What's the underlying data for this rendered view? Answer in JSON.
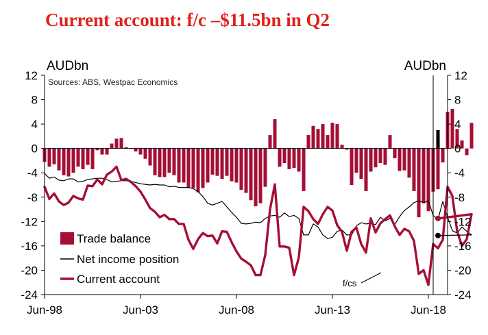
{
  "title": "Current account: f/c –$11.5bn in Q2",
  "chart_data": {
    "type": "bar",
    "title": "Current account: f/c –$11.5bn in Q2",
    "units_left": "AUDbn",
    "units_right": "AUDbn",
    "source": "Sources: ABS, Westpac Economics",
    "ylim": [
      -24,
      12
    ],
    "yticks": [
      12,
      8,
      4,
      0,
      -4,
      -8,
      -12,
      -16,
      -20,
      -24
    ],
    "xlim": [
      1998.0,
      2019.0
    ],
    "x_tick_positions": [
      1998.0,
      2003.0,
      2008.0,
      2013.0,
      2018.0
    ],
    "x_tick_labels": [
      "Jun-98",
      "Jun-03",
      "Jun-08",
      "Jun-13",
      "Jun-18"
    ],
    "forecast_line_x": 2018.25,
    "forecast_label": "f/cs",
    "colors": {
      "trade": "#a50f35",
      "current": "#a50f35",
      "income": "#000000",
      "forecast_bar": "#000000"
    },
    "legend": [
      "Trade balance",
      "Net income position",
      "Current account"
    ],
    "series": [
      {
        "name": "Trade balance",
        "kind": "bar",
        "x_start": 1998.0,
        "step": 0.25,
        "values": [
          -2.2,
          -3.0,
          -2.6,
          -3.6,
          -4.4,
          -4.6,
          -4.0,
          -3.0,
          -3.4,
          -2.7,
          -3.4,
          -0.3,
          -1.0,
          -1.0,
          0.8,
          1.6,
          1.7,
          0.2,
          -0.1,
          -0.5,
          -1.0,
          -1.7,
          -2.8,
          -4.4,
          -4.7,
          -4.7,
          -4.0,
          -4.4,
          -5.6,
          -5.6,
          -6.5,
          -6.5,
          -7.2,
          -6.5,
          -5.6,
          -4.3,
          -4.5,
          -5.0,
          -4.5,
          -5.4,
          -5.6,
          -6.8,
          -7.3,
          -8.5,
          -9.5,
          -9.0,
          -6.3,
          2.2,
          4.8,
          -3.0,
          -2.4,
          -3.4,
          -3.2,
          -3.8,
          -7.0,
          2.2,
          3.7,
          3.2,
          4.0,
          2.2,
          4.2,
          4.0,
          0.6,
          -0.2,
          -6.0,
          -4.0,
          -5.0,
          -7.0,
          -3.8,
          -3.1,
          -2.4,
          -2.7,
          2.2,
          -1.6,
          -3.7,
          -3.6,
          -4.8,
          -7.0,
          -11.3,
          -9.0,
          -10.3,
          -7.1,
          -6.7,
          -2.3,
          6.0,
          6.5,
          3.2,
          1.3,
          -1.1,
          4.2
        ],
        "forecast_values": [
          3.0
        ],
        "forecast_x_start": 2018.5
      },
      {
        "name": "Net income position",
        "kind": "line",
        "x_start": 1998.0,
        "step": 0.25,
        "values": [
          -4.1,
          -4.9,
          -4.7,
          -5.2,
          -5.3,
          -5.0,
          -5.0,
          -5.5,
          -5.4,
          -5.1,
          -5.0,
          -4.9,
          -4.9,
          -5.1,
          -5.5,
          -5.4,
          -5.3,
          -5.3,
          -5.4,
          -5.6,
          -5.8,
          -5.9,
          -6.0,
          -5.9,
          -6.0,
          -6.0,
          -6.3,
          -6.2,
          -6.4,
          -6.4,
          -6.4,
          -6.6,
          -7.1,
          -7.9,
          -9.0,
          -9.3,
          -9.0,
          -8.7,
          -9.6,
          -10.5,
          -11.3,
          -12.3,
          -12.4,
          -12.3,
          -12.1,
          -12.2,
          -11.5,
          -11.1,
          -11.0,
          -11.3,
          -10.6,
          -11.2,
          -11.0,
          -11.5,
          -14.2,
          -14.2,
          -12.4,
          -12.9,
          -14.2,
          -14.8,
          -14.6,
          -13.6,
          -13.4,
          -14.2,
          -14.2,
          -12.7,
          -12.2,
          -12.4,
          -12.3,
          -12.5,
          -11.3,
          -11.9,
          -11.5,
          -12.5,
          -11.2,
          -10.2,
          -9.6,
          -8.9,
          -8.6,
          -8.9,
          -8.6,
          -11.0,
          -11.7,
          -8.7,
          -11.3,
          -13.5,
          -13.9,
          -12.9,
          -13.6,
          -14.2
        ],
        "forecast_values": [
          -14.3
        ],
        "forecast_x_start": 2018.5
      },
      {
        "name": "Current account",
        "kind": "line",
        "x_start": 1998.0,
        "step": 0.25,
        "values": [
          -6.3,
          -8.3,
          -7.4,
          -8.7,
          -9.3,
          -8.9,
          -7.8,
          -8.2,
          -8.4,
          -6.1,
          -6.2,
          -5.1,
          -5.9,
          -4.3,
          -3.8,
          -3.0,
          -5.2,
          -5.0,
          -5.5,
          -6.2,
          -7.1,
          -8.4,
          -9.8,
          -10.4,
          -11.3,
          -10.9,
          -11.6,
          -11.6,
          -12.4,
          -12.4,
          -15.0,
          -16.5,
          -14.9,
          -13.9,
          -14.4,
          -14.3,
          -15.6,
          -13.6,
          -13.7,
          -15.4,
          -16.9,
          -18.1,
          -18.6,
          -19.2,
          -20.8,
          -20.8,
          -17.5,
          -10.0,
          -5.9,
          -16.1,
          -16.1,
          -16.3,
          -20.8,
          -17.9,
          -9.6,
          -10.3,
          -11.6,
          -12.4,
          -10.8,
          -9.6,
          -10.2,
          -12.6,
          -13.7,
          -16.8,
          -13.7,
          -13.0,
          -15.7,
          -17.1,
          -11.5,
          -13.8,
          -12.3,
          -11.6,
          -11.0,
          -12.8,
          -14.2,
          -13.2,
          -13.6,
          -15.2,
          -20.6,
          -20.0,
          -22.4,
          -15.7,
          -16.4,
          -15.0,
          -6.3,
          -7.8,
          -13.6,
          -16.0,
          -14.9,
          -10.8
        ],
        "forecast_values": [
          -11.5
        ],
        "forecast_x_start": 2018.5
      }
    ]
  }
}
